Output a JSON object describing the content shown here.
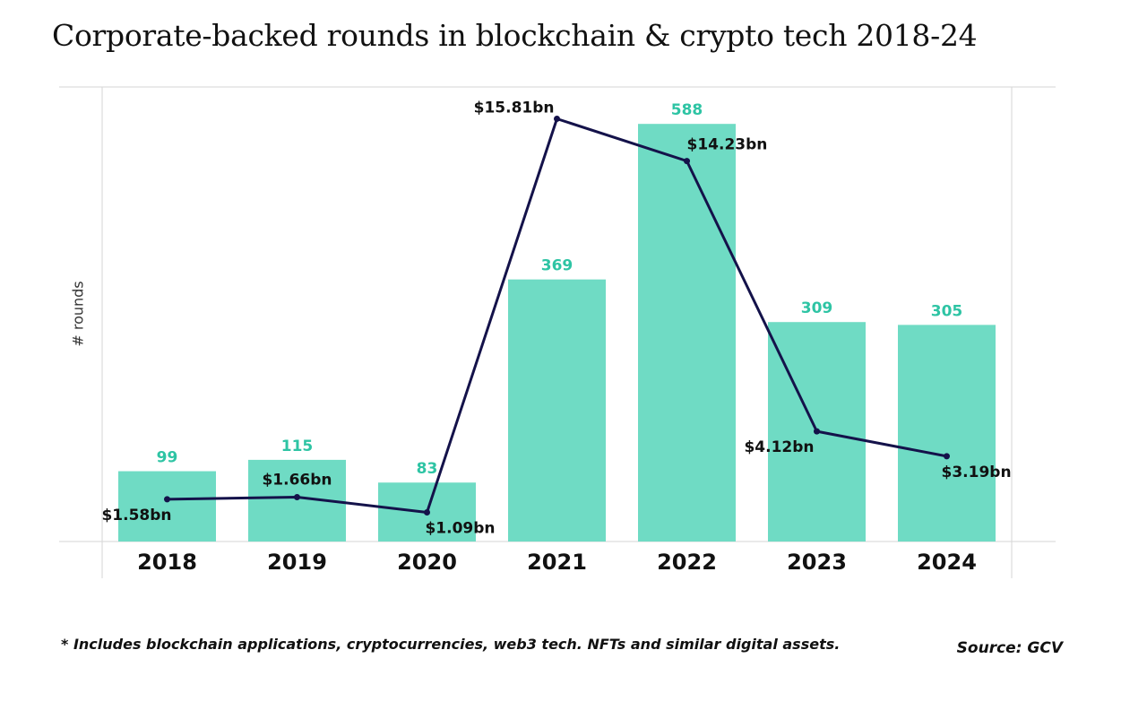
{
  "title": "Corporate-backed rounds in blockchain & crypto tech 2018-24",
  "footnote": "* Includes blockchain applications, cryptocurrencies, web3 tech. NFTs and similar digital assets.",
  "source": "Source: GCV",
  "colors": {
    "bar": "#6fdbc4",
    "bar_label": "#2ec4a4",
    "line": "#14124a",
    "text": "#111111",
    "grid": "#d6d6d6"
  },
  "chart_data": {
    "type": "bar",
    "categories": [
      "2018",
      "2019",
      "2020",
      "2021",
      "2022",
      "2023",
      "2024"
    ],
    "ylabel": "# rounds",
    "ylim": [
      0,
      640
    ],
    "series": [
      {
        "type": "bar",
        "values": [
          99,
          115,
          83,
          369,
          588,
          309,
          305
        ],
        "labels": [
          "99",
          "115",
          "83",
          "369",
          "588",
          "309",
          "305"
        ]
      },
      {
        "type": "line",
        "values": [
          1.58,
          1.66,
          1.09,
          15.81,
          14.23,
          4.12,
          3.19
        ],
        "labels": [
          "$1.58bn",
          "$1.66bn",
          "$1.09bn",
          "$15.81bn",
          "$14.23bn",
          "$4.12bn",
          "$3.19bn"
        ],
        "ylim": [
          0,
          17
        ]
      }
    ]
  }
}
